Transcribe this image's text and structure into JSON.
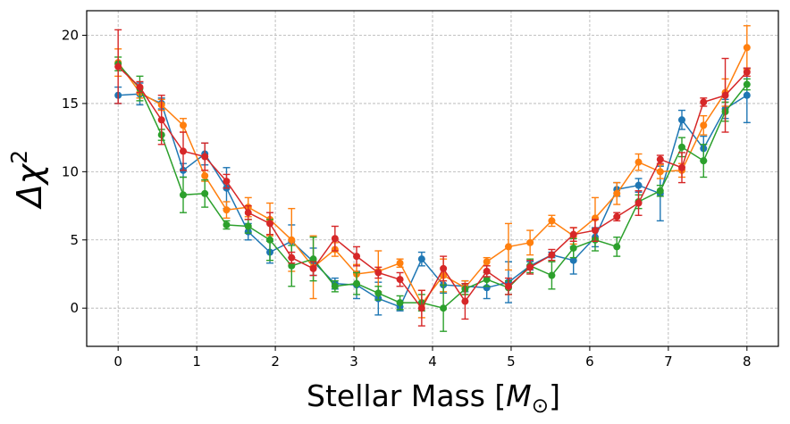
{
  "chart_data": {
    "type": "line",
    "xlabel": "Stellar Mass [",
    "xlabel_unit": "M",
    "xlabel_unit_sub": "⊙",
    "xlabel_close": "]",
    "ylabel": "Δχ",
    "ylabel_sup": "2",
    "xlim": [
      -0.4,
      8.4
    ],
    "ylim": [
      -2.8,
      21.8
    ],
    "xticks": [
      0,
      1,
      2,
      3,
      4,
      5,
      6,
      7,
      8
    ],
    "yticks": [
      0,
      5,
      10,
      15,
      20
    ],
    "grid": true,
    "legend": false,
    "x": [
      0,
      0.276,
      0.552,
      0.828,
      1.103,
      1.379,
      1.655,
      1.931,
      2.207,
      2.483,
      2.759,
      3.034,
      3.31,
      3.586,
      3.862,
      4.138,
      4.414,
      4.69,
      4.966,
      5.241,
      5.517,
      5.793,
      6.069,
      6.345,
      6.621,
      6.897,
      7.172,
      7.448,
      7.724,
      8.0
    ],
    "series": [
      {
        "color": "#1f77b4",
        "values": [
          15.6,
          15.7,
          15.0,
          10.1,
          11.3,
          8.8,
          5.6,
          4.1,
          4.9,
          3.4,
          1.8,
          1.7,
          0.7,
          0.1,
          3.6,
          1.7,
          1.6,
          1.5,
          1.9,
          3.1,
          3.9,
          3.5,
          5.2,
          8.7,
          9.0,
          8.4,
          13.8,
          11.7,
          14.6,
          15.6
        ],
        "errors": [
          0.6,
          0.8,
          0.4,
          0.5,
          0.8,
          1.5,
          0.6,
          0.8,
          1.2,
          1.0,
          0.4,
          1.0,
          1.2,
          0.3,
          0.5,
          0.6,
          0.4,
          0.8,
          1.5,
          0.3,
          0.2,
          1.0,
          0.7,
          0.5,
          0.5,
          2.0,
          0.7,
          0.9,
          0.7,
          2.0
        ]
      },
      {
        "color": "#ff7f0e",
        "values": [
          18.0,
          15.8,
          14.9,
          13.4,
          9.7,
          7.2,
          7.4,
          6.5,
          5.0,
          3.0,
          4.3,
          2.5,
          2.7,
          3.3,
          0.3,
          2.4,
          1.5,
          3.4,
          4.5,
          4.8,
          6.4,
          5.3,
          6.6,
          8.4,
          10.7,
          10.0,
          10.1,
          13.4,
          15.8,
          19.1
        ],
        "errors": [
          1.0,
          0.4,
          0.4,
          0.5,
          0.4,
          0.6,
          0.7,
          1.2,
          2.3,
          2.3,
          0.5,
          0.7,
          1.5,
          0.3,
          1.0,
          1.2,
          0.5,
          0.3,
          1.7,
          0.9,
          0.4,
          0.6,
          1.5,
          0.8,
          0.6,
          0.5,
          0.5,
          0.7,
          1.0,
          1.6
        ]
      },
      {
        "color": "#2ca02c",
        "values": [
          17.9,
          16.1,
          12.7,
          8.3,
          8.4,
          6.1,
          6.0,
          5.0,
          3.1,
          3.6,
          1.6,
          1.8,
          1.1,
          0.4,
          0.4,
          0.0,
          1.4,
          2.1,
          1.5,
          3.1,
          2.4,
          4.4,
          5.0,
          4.5,
          7.8,
          8.6,
          11.8,
          10.8,
          14.4,
          16.4
        ],
        "errors": [
          0.5,
          0.9,
          0.4,
          1.3,
          1.0,
          0.3,
          0.5,
          1.5,
          1.5,
          1.6,
          0.4,
          0.8,
          0.5,
          0.5,
          0.6,
          1.7,
          0.4,
          0.5,
          0.5,
          0.5,
          1.0,
          0.7,
          0.8,
          0.7,
          0.5,
          0.4,
          0.7,
          1.2,
          0.7,
          0.4
        ]
      },
      {
        "color": "#d62728",
        "values": [
          17.7,
          16.2,
          13.8,
          11.5,
          11.1,
          9.3,
          7.0,
          6.2,
          3.7,
          2.9,
          5.1,
          3.8,
          2.6,
          2.1,
          0.0,
          2.9,
          0.5,
          2.7,
          1.6,
          3.0,
          3.9,
          5.4,
          5.7,
          6.7,
          7.7,
          10.9,
          10.3,
          15.1,
          15.6,
          17.3
        ],
        "errors": [
          2.7,
          0.4,
          1.8,
          1.4,
          1.0,
          0.5,
          0.5,
          0.8,
          0.4,
          0.5,
          0.9,
          0.7,
          0.4,
          0.5,
          1.3,
          0.9,
          1.3,
          0.4,
          0.6,
          0.5,
          0.4,
          0.5,
          0.8,
          0.3,
          0.9,
          0.3,
          1.1,
          0.3,
          2.7,
          0.3
        ]
      }
    ]
  }
}
